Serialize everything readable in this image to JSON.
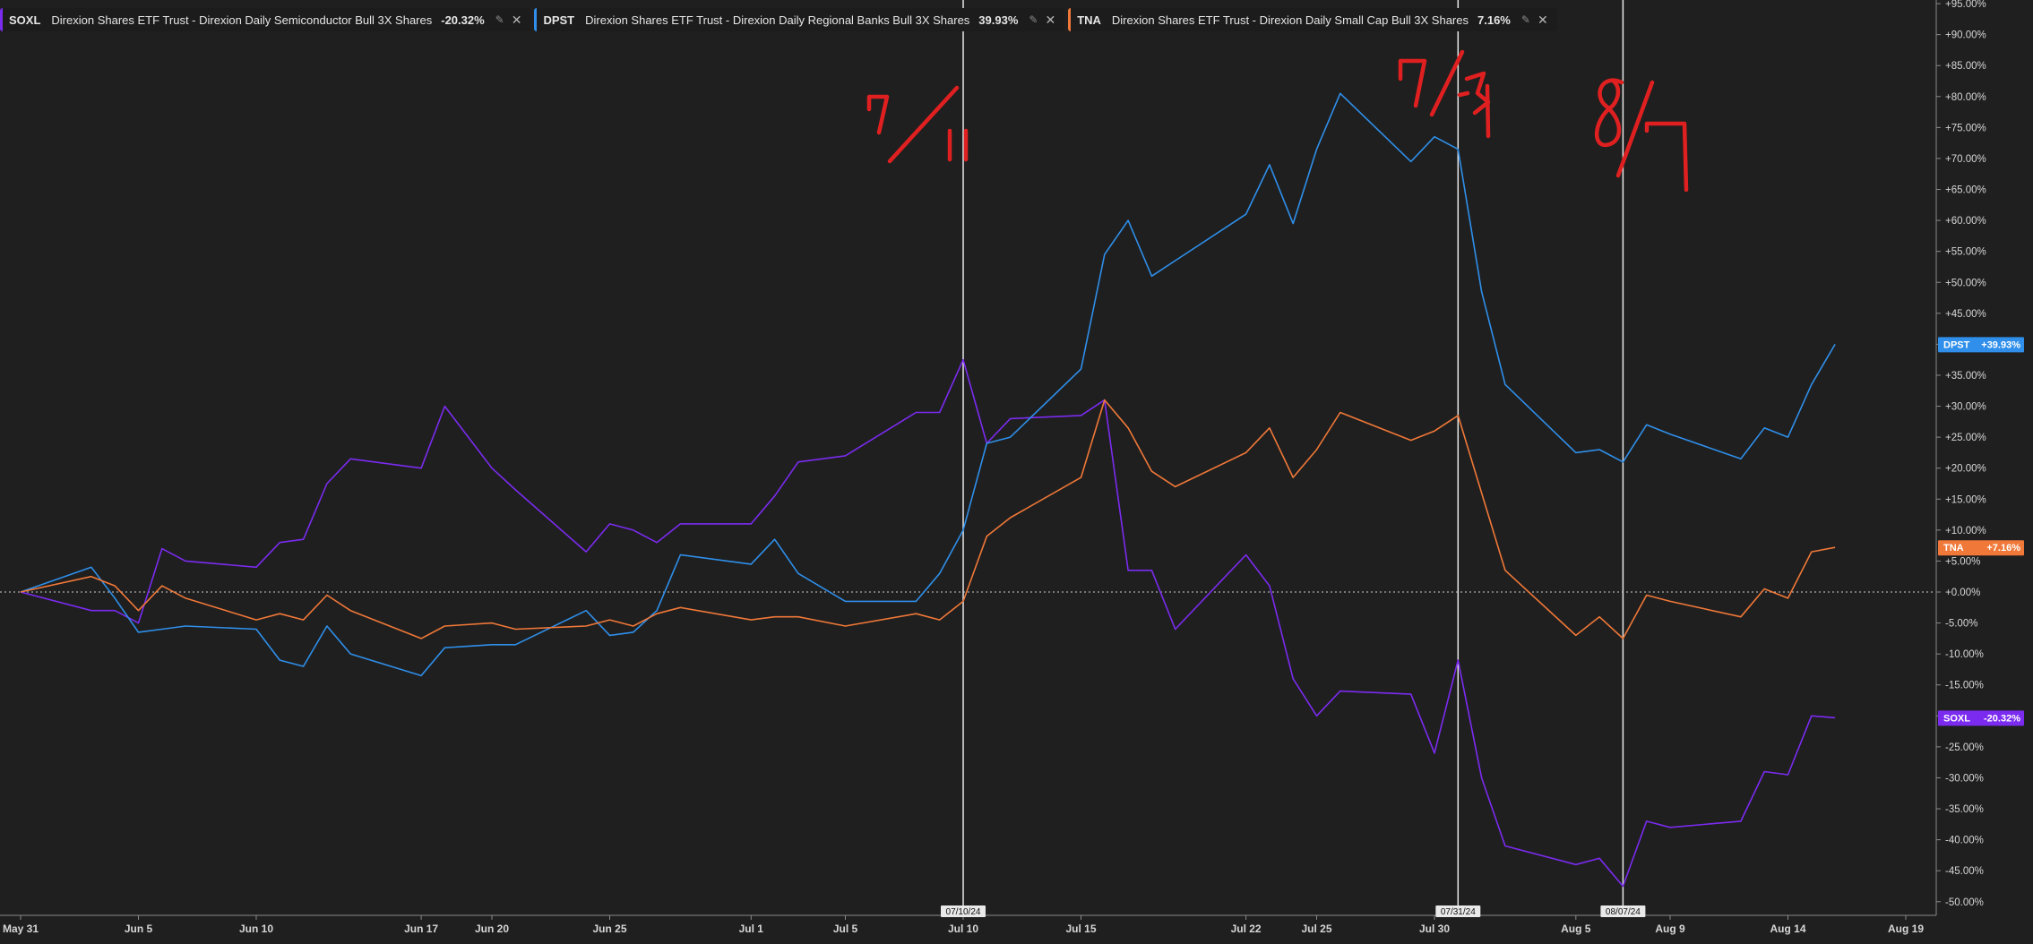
{
  "legend": [
    {
      "symbol": "SOXL",
      "name": "Direxion Shares ETF Trust - Direxion Daily Semiconductor Bull 3X Shares",
      "pct": "-20.32%",
      "color": "#7b2bf0"
    },
    {
      "symbol": "DPST",
      "name": "Direxion Shares ETF Trust - Direxion Daily Regional Banks Bull 3X Shares",
      "pct": "39.93%",
      "color": "#2f8fea"
    },
    {
      "symbol": "TNA",
      "name": "Direxion Shares ETF Trust - Direxion Daily Small Cap Bull 3X Shares",
      "pct": "7.16%",
      "color": "#f07838"
    }
  ],
  "legend_icons": {
    "paint": "paint-icon",
    "close": "close-icon"
  },
  "chart_data": {
    "type": "line",
    "title": "",
    "xlabel": "",
    "ylabel": "",
    "ylim": [
      -52,
      95
    ],
    "y_ticks": [
      95,
      90,
      85,
      80,
      75,
      70,
      65,
      60,
      55,
      50,
      45,
      40,
      35,
      30,
      25,
      20,
      15,
      10,
      5,
      0,
      -5,
      -10,
      -15,
      -20,
      -25,
      -30,
      -35,
      -40,
      -45,
      -50
    ],
    "y_tick_labels": [
      "+95.00%",
      "+90.00%",
      "+85.00%",
      "+80.00%",
      "+75.00%",
      "+70.00%",
      "+65.00%",
      "+60.00%",
      "+55.00%",
      "+50.00%",
      "+45.00%",
      "+40.00%",
      "+35.00%",
      "+30.00%",
      "+25.00%",
      "+20.00%",
      "+15.00%",
      "+10.00%",
      "+5.00%",
      "+0.00%",
      "-5.00%",
      "-10.00%",
      "-15.00%",
      "-20.00%",
      "-25.00%",
      "-30.00%",
      "-35.00%",
      "-40.00%",
      "-45.00%",
      "-50.00%"
    ],
    "x": [
      "2024-05-31",
      "2024-06-03",
      "2024-06-04",
      "2024-06-05",
      "2024-06-06",
      "2024-06-07",
      "2024-06-10",
      "2024-06-11",
      "2024-06-12",
      "2024-06-13",
      "2024-06-14",
      "2024-06-17",
      "2024-06-18",
      "2024-06-20",
      "2024-06-21",
      "2024-06-24",
      "2024-06-25",
      "2024-06-26",
      "2024-06-27",
      "2024-06-28",
      "2024-07-01",
      "2024-07-02",
      "2024-07-03",
      "2024-07-05",
      "2024-07-08",
      "2024-07-09",
      "2024-07-10",
      "2024-07-11",
      "2024-07-12",
      "2024-07-15",
      "2024-07-16",
      "2024-07-17",
      "2024-07-18",
      "2024-07-19",
      "2024-07-22",
      "2024-07-23",
      "2024-07-24",
      "2024-07-25",
      "2024-07-26",
      "2024-07-29",
      "2024-07-30",
      "2024-07-31",
      "2024-08-01",
      "2024-08-02",
      "2024-08-05",
      "2024-08-06",
      "2024-08-07",
      "2024-08-08",
      "2024-08-09",
      "2024-08-12",
      "2024-08-13",
      "2024-08-14",
      "2024-08-15",
      "2024-08-16"
    ],
    "x_ticks": [
      {
        "date": "2024-05-31",
        "label": "May 31"
      },
      {
        "date": "2024-06-05",
        "label": "Jun 5"
      },
      {
        "date": "2024-06-10",
        "label": "Jun 10"
      },
      {
        "date": "2024-06-17",
        "label": "Jun 17"
      },
      {
        "date": "2024-06-20",
        "label": "Jun 20"
      },
      {
        "date": "2024-06-25",
        "label": "Jun 25"
      },
      {
        "date": "2024-07-01",
        "label": "Jul 1"
      },
      {
        "date": "2024-07-05",
        "label": "Jul 5"
      },
      {
        "date": "2024-07-10",
        "label": "Jul 10"
      },
      {
        "date": "2024-07-15",
        "label": "Jul 15"
      },
      {
        "date": "2024-07-22",
        "label": "Jul 22"
      },
      {
        "date": "2024-07-25",
        "label": "Jul 25"
      },
      {
        "date": "2024-07-30",
        "label": "Jul 30"
      },
      {
        "date": "2024-08-05",
        "label": "Aug 5"
      },
      {
        "date": "2024-08-09",
        "label": "Aug 9"
      },
      {
        "date": "2024-08-14",
        "label": "Aug 14"
      },
      {
        "date": "2024-08-19",
        "label": "Aug 19"
      }
    ],
    "vertical_markers": [
      {
        "date": "2024-07-10",
        "label": "07/10/24"
      },
      {
        "date": "2024-07-31",
        "label": "07/31/24"
      },
      {
        "date": "2024-08-07",
        "label": "08/07/24"
      }
    ],
    "zero_line": true,
    "grid": false,
    "legend_position": "top-left",
    "series": [
      {
        "name": "SOXL",
        "color": "#7b2bf0",
        "end_label": "-20.32%",
        "values": [
          0,
          -3,
          -3,
          -5,
          7,
          5,
          4,
          8,
          8.5,
          17.5,
          21.5,
          20,
          30,
          20,
          16.5,
          6.5,
          11,
          10,
          8,
          11,
          11,
          15.5,
          21,
          22,
          29,
          29,
          37.5,
          24,
          28,
          28.5,
          31,
          3.5,
          3.5,
          -6,
          6,
          1,
          -14,
          -20,
          -16,
          -16.5,
          -26,
          -11,
          -30,
          -41,
          -44,
          -43,
          -47.5,
          -37,
          -38,
          -37,
          -29,
          -29.5,
          -20,
          -20.3
        ]
      },
      {
        "name": "DPST",
        "color": "#2f8fea",
        "end_label": "+39.93%",
        "values": [
          0,
          4,
          -1,
          -6.5,
          -6,
          -5.5,
          -6,
          -11,
          -12,
          -5.5,
          -10,
          -13.5,
          -9,
          -8.5,
          -8.5,
          -3,
          -7,
          -6.5,
          -3,
          6,
          4.5,
          8.5,
          3,
          -1.5,
          -1.5,
          3,
          10,
          24,
          25,
          36,
          54.5,
          60,
          51,
          53.5,
          61,
          69,
          59.5,
          71.5,
          80.5,
          69.5,
          73.5,
          71.5,
          48.5,
          33.5,
          22.5,
          23,
          21,
          27,
          25.5,
          21.5,
          26.5,
          25,
          33.5,
          40
        ]
      },
      {
        "name": "TNA",
        "color": "#f07838",
        "end_label": "+7.16%",
        "values": [
          0,
          2.5,
          1,
          -3,
          1,
          -1,
          -4.5,
          -3.5,
          -4.5,
          -0.5,
          -3,
          -7.5,
          -5.5,
          -5,
          -6,
          -5.5,
          -4.5,
          -5.5,
          -3.5,
          -2.5,
          -4.5,
          -4,
          -4,
          -5.5,
          -3.5,
          -4.5,
          -1.5,
          9,
          12,
          18.5,
          31,
          26.5,
          19.5,
          17,
          22.5,
          26.5,
          18.5,
          23,
          29,
          24.5,
          26,
          28.5,
          16,
          3.5,
          -7,
          -4,
          -7.5,
          -0.5,
          -1.5,
          -4,
          0.5,
          -1,
          6.5,
          7.2
        ]
      }
    ],
    "annotations": [
      {
        "text": "7/11",
        "color": "#e02020"
      },
      {
        "text": "7/31",
        "color": "#e02020"
      },
      {
        "text": "8/7",
        "color": "#e02020"
      }
    ]
  }
}
